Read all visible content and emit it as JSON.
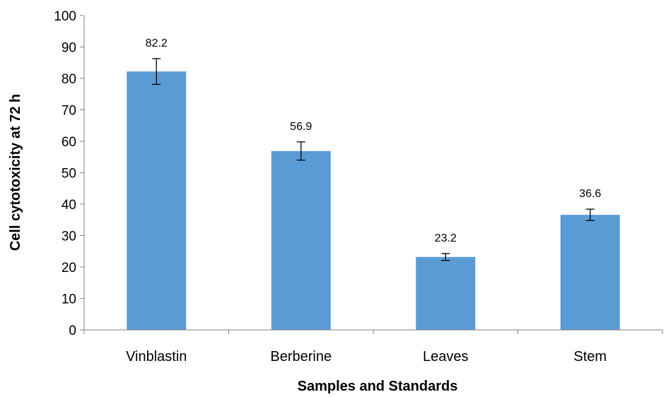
{
  "chart_data": {
    "type": "bar",
    "title": "",
    "xlabel": "Samples and Standards",
    "ylabel": "Cell cytotoxicity at 72 h",
    "categories": [
      "Vinblastin",
      "Berberine",
      "Leaves",
      "Stem"
    ],
    "values": [
      82.2,
      56.9,
      23.2,
      36.6
    ],
    "data_labels": [
      "82.2",
      "56.9",
      "23.2",
      "36.6"
    ],
    "error": [
      4.1,
      2.9,
      1.1,
      1.8
    ],
    "ylim": [
      0,
      100
    ],
    "yticks": [
      0,
      10,
      20,
      30,
      40,
      50,
      60,
      70,
      80,
      90,
      100
    ],
    "grid": false,
    "legend": "none",
    "bar_color": "#5b9bd5"
  }
}
